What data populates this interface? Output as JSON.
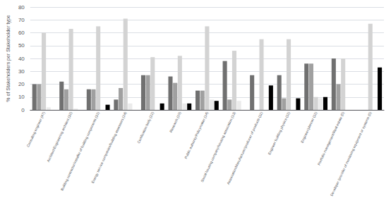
{
  "chart_data": {
    "type": "bar",
    "ylabel": "% of Stakeholders per Stakeholder type",
    "categories": [
      "Consulting engineer (47)",
      "Architect/Engineering architect (32)",
      "Building contractor/installer of building components (31)",
      "Energy service companies/building assessors (24)",
      "Certification body (22)",
      "Research (19)",
      "Public authority/Policymaker (14)",
      "Social housing company/housing association (13)",
      "Association/Manufacturer/producer of products (11)",
      "Engineer building physics (11)",
      "Engineer/planner (11)",
      "Portfolio management/Real estate (5)",
      "Developer /provider of monitoring equipment or systems (5)"
    ],
    "series": [
      {
        "color": "#707070",
        "values": [
          20,
          22,
          16,
          8,
          27,
          26,
          15,
          38,
          27,
          27,
          36,
          40,
          0
        ]
      },
      {
        "color": "#a0a0a0",
        "values": [
          20,
          16,
          16,
          17,
          27,
          21,
          15,
          8,
          0,
          9,
          36,
          20,
          0
        ]
      },
      {
        "color": "#d3d3d3",
        "values": [
          60,
          63,
          65,
          71,
          41,
          42,
          65,
          46,
          55,
          55,
          10,
          40,
          67
        ]
      },
      {
        "color": "#ebebeb",
        "values": [
          2,
          1,
          0,
          5,
          0,
          5,
          8,
          7,
          0,
          0,
          9,
          0,
          0
        ]
      },
      {
        "color": "#000000",
        "values": [
          0,
          0,
          4,
          0,
          5,
          5,
          7,
          0,
          19,
          9,
          10,
          0,
          33
        ]
      }
    ],
    "ylim": [
      0,
      80
    ],
    "yticks": [
      0,
      10,
      20,
      30,
      40,
      50,
      60,
      70,
      80
    ],
    "grid": true
  }
}
